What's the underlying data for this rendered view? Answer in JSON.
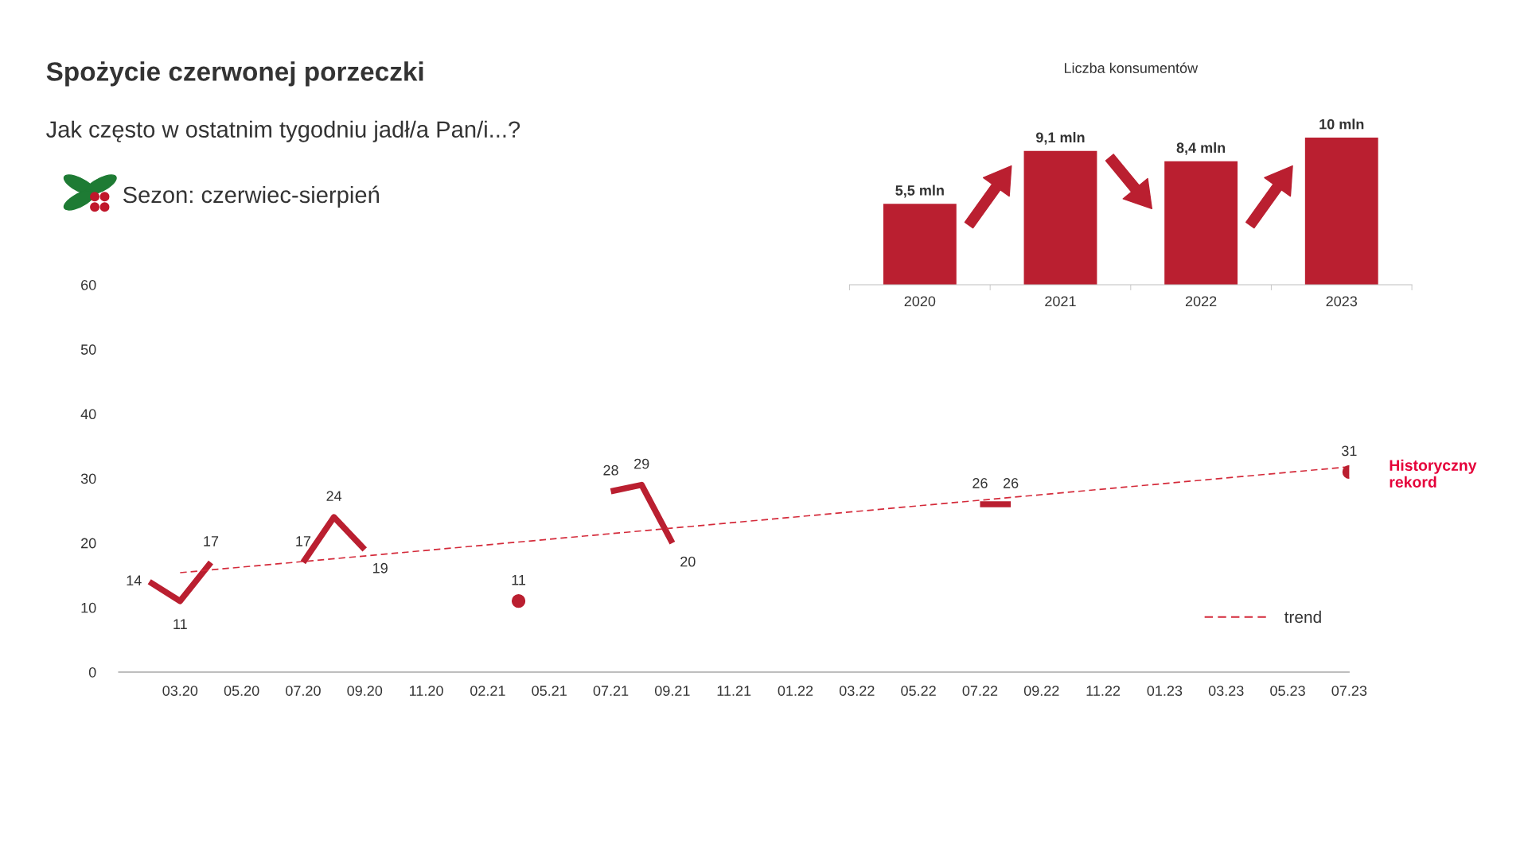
{
  "chart_data": [
    {
      "type": "line",
      "subtitle": "Jak często w ostatnim tygodniu jadł/a Pan/i...?",
      "categories": [
        null,
        "03.20",
        null,
        "05.20",
        null,
        "07.20",
        null,
        "09.20",
        null,
        "11.20",
        null,
        "02.21",
        null,
        "05.21",
        null,
        "07.21",
        null,
        "09.21",
        null,
        "11.21",
        null,
        "01.22",
        null,
        "03.22",
        null,
        "05.22",
        null,
        "07.22",
        null,
        "09.22",
        null,
        "11.22",
        null,
        "01.23",
        null,
        "03.23",
        null,
        "05.23",
        null,
        "07.23"
      ],
      "series": [
        {
          "type": "line",
          "color": "#ba1f30",
          "data_labels": true,
          "values": [
            14,
            11,
            17,
            null,
            null,
            17,
            24,
            19,
            null,
            null,
            null,
            null,
            null,
            null,
            null,
            28,
            29,
            20,
            null,
            null,
            null,
            null,
            null,
            null,
            null,
            null,
            null,
            26,
            26,
            null,
            null,
            null,
            null,
            null,
            null,
            null,
            null,
            null,
            null,
            null
          ]
        },
        {
          "type": "scatter",
          "color": "#ba1f30",
          "data_labels": true,
          "values": [
            null,
            null,
            null,
            null,
            null,
            null,
            null,
            null,
            null,
            null,
            null,
            null,
            11,
            null,
            null,
            null,
            null,
            null,
            null,
            null,
            null,
            null,
            null,
            null,
            null,
            null,
            null,
            null,
            null,
            null,
            null,
            null,
            null,
            null,
            null,
            null,
            null,
            null,
            null,
            31
          ]
        },
        {
          "type": "line",
          "name": "trend",
          "color": "#d42a3a",
          "line_style": "dashed",
          "x": [
            "03.20",
            "07.23"
          ],
          "values": [
            15.4,
            31.8
          ]
        }
      ],
      "ylim": [
        0,
        60
      ],
      "yticks": [
        0,
        10,
        20,
        30,
        40,
        50,
        60
      ],
      "grid": false,
      "legend": "bottom right",
      "annotations": [
        "Spożycie czerwonej porzeczki",
        "Sezon: czerwiec-sierpień",
        "Historyczny\nrekord"
      ]
    },
    {
      "type": "bar",
      "title": "Liczba konsumentów",
      "categories": [
        "2020",
        "2021",
        "2022",
        "2023"
      ],
      "values": [
        5.5,
        9.1,
        8.4,
        10
      ],
      "value_labels": [
        "5,5 mln",
        "9,1 mln",
        "8,4 mln",
        "10 mln"
      ],
      "color": "#ba1f30"
    }
  ]
}
